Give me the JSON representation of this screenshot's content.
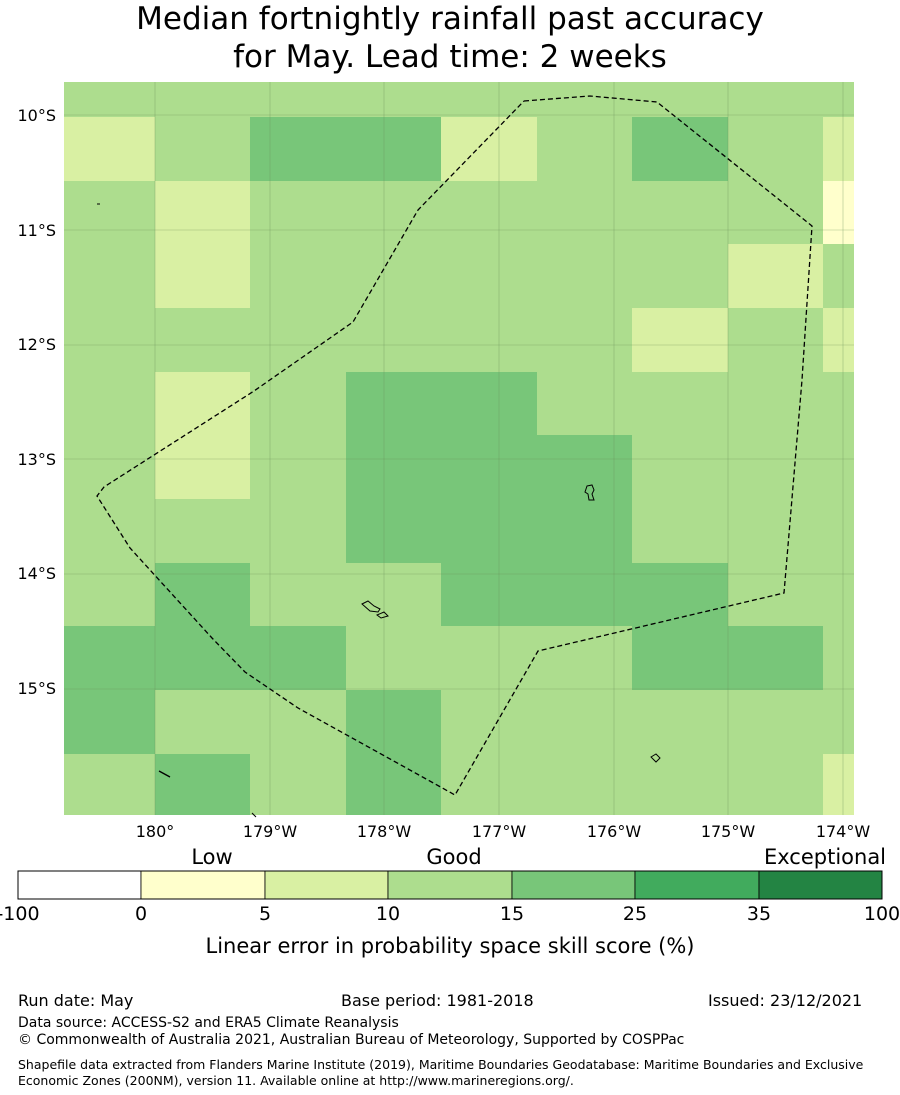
{
  "title": {
    "line1": "Median fortnightly rainfall past accuracy",
    "line2": "for May. Lead time: 2 weeks"
  },
  "map": {
    "lat_labels": [
      "10°S",
      "11°S",
      "12°S",
      "13°S",
      "14°S",
      "15°S"
    ],
    "lon_labels": [
      "180°",
      "179°W",
      "178°W",
      "177°W",
      "176°W",
      "175°W",
      "174°W"
    ],
    "category_colors": {
      "0-5": "#ffffcc",
      "5-10": "#d9f0a3",
      "10-15": "#addd8e",
      "15-25": "#78c679",
      "25-35": "#41ab5d",
      "35-100": "#238443"
    },
    "grid_categories_rows_top_to_bottom": [
      [
        "10-15",
        "10-15",
        "10-15",
        "10-15",
        "10-15",
        "10-15",
        "10-15",
        "10-15",
        "10-15"
      ],
      [
        "5-10",
        "10-15",
        "15-25",
        "15-25",
        "5-10",
        "10-15",
        "15-25",
        "10-15",
        "5-10"
      ],
      [
        "10-15",
        "5-10",
        "10-15",
        "10-15",
        "10-15",
        "10-15",
        "10-15",
        "10-15",
        "0-5"
      ],
      [
        "10-15",
        "5-10",
        "10-15",
        "10-15",
        "10-15",
        "10-15",
        "10-15",
        "5-10",
        "10-15"
      ],
      [
        "10-15",
        "10-15",
        "10-15",
        "10-15",
        "10-15",
        "10-15",
        "5-10",
        "10-15",
        "5-10"
      ],
      [
        "10-15",
        "5-10",
        "10-15",
        "15-25",
        "15-25",
        "10-15",
        "10-15",
        "10-15",
        "10-15"
      ],
      [
        "10-15",
        "5-10",
        "10-15",
        "15-25",
        "15-25",
        "15-25",
        "10-15",
        "10-15",
        "10-15"
      ],
      [
        "10-15",
        "10-15",
        "10-15",
        "15-25",
        "15-25",
        "15-25",
        "10-15",
        "10-15",
        "10-15"
      ],
      [
        "10-15",
        "15-25",
        "10-15",
        "10-15",
        "15-25",
        "15-25",
        "15-25",
        "10-15",
        "10-15"
      ],
      [
        "15-25",
        "15-25",
        "15-25",
        "10-15",
        "10-15",
        "10-15",
        "15-25",
        "15-25",
        "10-15"
      ],
      [
        "15-25",
        "10-15",
        "10-15",
        "15-25",
        "10-15",
        "10-15",
        "10-15",
        "10-15",
        "10-15"
      ],
      [
        "10-15",
        "15-25",
        "10-15",
        "15-25",
        "10-15",
        "10-15",
        "10-15",
        "10-15",
        "5-10"
      ]
    ]
  },
  "colorbar": {
    "category_labels": [
      "Low",
      "Good",
      "Exceptional"
    ],
    "ticks": [
      "-100",
      "0",
      "5",
      "10",
      "15",
      "25",
      "35",
      "100"
    ],
    "colors": [
      "#ffffff",
      "#ffffcc",
      "#d9f0a3",
      "#addd8e",
      "#78c679",
      "#41ab5d",
      "#238443"
    ],
    "xlabel": "Linear error in probability space skill score (%)"
  },
  "footer": {
    "run_date": "Run date: May",
    "base_period": "Base period: 1981-2018",
    "issued": "Issued: 23/12/2021",
    "data_source": "Data source: ACCESS-S2 and ERA5 Climate Reanalysis",
    "copyright": "© Commonwealth of Australia 2021, Australian Bureau of Meteorology, Supported by COSPPac",
    "shapefile": "Shapefile data extracted from Flanders Marine Institute (2019), Maritime Boundaries Geodatabase: Maritime Boundaries and Exclusive Economic Zones (200NM), version 11. Available online at http://www.marineregions.org/."
  }
}
